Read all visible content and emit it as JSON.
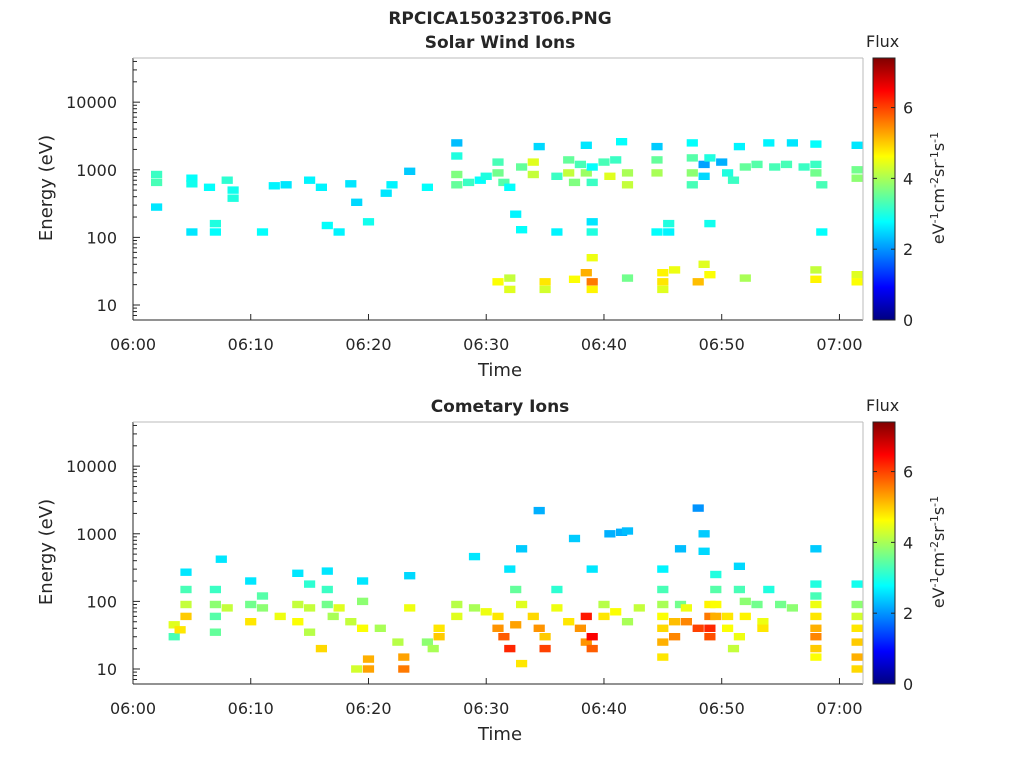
{
  "figure_title": "RPCICA150323T06.PNG",
  "chart_data": [
    {
      "type": "heatmap",
      "title": "Solar Wind Ions",
      "xlabel": "Time",
      "ylabel": "Energy (eV)",
      "x_ticks": [
        "06:00",
        "06:10",
        "06:20",
        "06:30",
        "06:40",
        "06:50",
        "07:00"
      ],
      "xlim": [
        "06:00",
        "07:02"
      ],
      "y_scale": "log",
      "y_ticks": [
        "10",
        "100",
        "1000",
        "10000"
      ],
      "ylim": [
        6,
        45000
      ],
      "colorbar": {
        "title": "Flux",
        "label": "eV-1cm-2sr-1s-1",
        "ticks": [
          "0",
          "2",
          "4",
          "6"
        ],
        "range": [
          0,
          7.4
        ],
        "colormap": "jet"
      },
      "points": [
        [
          "06:02",
          850,
          3.2
        ],
        [
          "06:02",
          650,
          3.3
        ],
        [
          "06:02",
          280,
          2.6
        ],
        [
          "06:05",
          750,
          2.8
        ],
        [
          "06:05",
          620,
          2.9
        ],
        [
          "06:05",
          120,
          2.6
        ],
        [
          "06:06.5",
          550,
          2.8
        ],
        [
          "06:07",
          160,
          3.0
        ],
        [
          "06:07",
          120,
          2.8
        ],
        [
          "06:08",
          700,
          3.1
        ],
        [
          "06:08.5",
          500,
          2.9
        ],
        [
          "06:08.5",
          380,
          3.0
        ],
        [
          "06:11",
          120,
          2.8
        ],
        [
          "06:12",
          580,
          2.7
        ],
        [
          "06:13",
          600,
          2.6
        ],
        [
          "06:15",
          700,
          2.7
        ],
        [
          "06:16",
          550,
          2.7
        ],
        [
          "06:16.5",
          150,
          2.8
        ],
        [
          "06:17.5",
          120,
          2.7
        ],
        [
          "06:18.5",
          620,
          2.6
        ],
        [
          "06:19",
          330,
          2.5
        ],
        [
          "06:20",
          170,
          2.9
        ],
        [
          "06:21.5",
          450,
          2.6
        ],
        [
          "06:22",
          600,
          2.7
        ],
        [
          "06:23.5",
          950,
          2.4
        ],
        [
          "06:25",
          550,
          2.8
        ],
        [
          "06:27.5",
          2500,
          2.3
        ],
        [
          "06:27.5",
          1600,
          3.0
        ],
        [
          "06:27.5",
          850,
          3.7
        ],
        [
          "06:27.5",
          600,
          3.5
        ],
        [
          "06:28.5",
          650,
          3.2
        ],
        [
          "06:29.5",
          700,
          2.8
        ],
        [
          "06:30",
          800,
          3.0
        ],
        [
          "06:31",
          1300,
          3.3
        ],
        [
          "06:31",
          900,
          3.6
        ],
        [
          "06:31.5",
          650,
          3.4
        ],
        [
          "06:32",
          550,
          2.8
        ],
        [
          "06:32.5",
          220,
          2.7
        ],
        [
          "06:33",
          130,
          2.8
        ],
        [
          "06:33",
          1100,
          3.5
        ],
        [
          "06:34",
          1300,
          4.4
        ],
        [
          "06:34",
          850,
          4.2
        ],
        [
          "06:34.5",
          2200,
          2.5
        ],
        [
          "06:36",
          800,
          3.2
        ],
        [
          "06:36",
          120,
          2.7
        ],
        [
          "06:37",
          1400,
          3.5
        ],
        [
          "06:37",
          900,
          4.2
        ],
        [
          "06:37.5",
          650,
          3.7
        ],
        [
          "06:38",
          1200,
          3.3
        ],
        [
          "06:38.5",
          2300,
          2.6
        ],
        [
          "06:38.5",
          900,
          3.9
        ],
        [
          "06:39",
          1100,
          2.8
        ],
        [
          "06:39",
          650,
          3.2
        ],
        [
          "06:39",
          170,
          2.6
        ],
        [
          "06:39",
          120,
          3.0
        ],
        [
          "06:40",
          1300,
          3.3
        ],
        [
          "06:40.5",
          800,
          4.4
        ],
        [
          "06:41",
          1400,
          3.2
        ],
        [
          "06:41.5",
          2600,
          2.8
        ],
        [
          "06:42",
          900,
          4.0
        ],
        [
          "06:42",
          600,
          4.2
        ],
        [
          "06:44.5",
          1400,
          3.5
        ],
        [
          "06:44.5",
          900,
          4.0
        ],
        [
          "06:44.5",
          2200,
          2.4
        ],
        [
          "06:44.5",
          120,
          2.8
        ],
        [
          "06:45.5",
          160,
          3.0
        ],
        [
          "06:45.5",
          120,
          2.7
        ],
        [
          "06:47.5",
          2500,
          2.8
        ],
        [
          "06:47.5",
          1500,
          3.4
        ],
        [
          "06:47.5",
          900,
          3.8
        ],
        [
          "06:47.5",
          600,
          3.3
        ],
        [
          "06:48.5",
          1200,
          2.1
        ],
        [
          "06:48.5",
          800,
          2.5
        ],
        [
          "06:49",
          1500,
          3.0
        ],
        [
          "06:49",
          160,
          2.9
        ],
        [
          "06:50",
          1300,
          2.2
        ],
        [
          "06:50.5",
          900,
          3.0
        ],
        [
          "06:51",
          700,
          3.2
        ],
        [
          "06:51.5",
          2200,
          2.7
        ],
        [
          "06:52",
          1100,
          3.5
        ],
        [
          "06:53",
          1200,
          3.4
        ],
        [
          "06:54",
          2500,
          2.7
        ],
        [
          "06:54.5",
          1100,
          3.3
        ],
        [
          "06:55.5",
          1200,
          3.3
        ],
        [
          "06:56",
          2500,
          2.6
        ],
        [
          "06:57",
          1100,
          3.2
        ],
        [
          "06:58",
          2400,
          2.8
        ],
        [
          "06:58",
          1200,
          3.2
        ],
        [
          "06:58",
          900,
          3.6
        ],
        [
          "06:58.5",
          600,
          3.3
        ],
        [
          "06:58.5",
          120,
          2.8
        ],
        [
          "07:01.5",
          2300,
          2.6
        ],
        [
          "07:01.5",
          1000,
          3.6
        ],
        [
          "07:01.5",
          750,
          3.8
        ],
        [
          "06:31",
          22,
          4.6
        ],
        [
          "06:32",
          25,
          4.2
        ],
        [
          "06:32",
          17,
          4.4
        ],
        [
          "06:35",
          22,
          4.8
        ],
        [
          "06:35",
          17,
          4.3
        ],
        [
          "06:37.5",
          24,
          4.6
        ],
        [
          "06:38.5",
          30,
          5.2
        ],
        [
          "06:39",
          22,
          5.6
        ],
        [
          "06:39",
          17,
          4.7
        ],
        [
          "06:39",
          50,
          4.5
        ],
        [
          "06:42",
          25,
          3.6
        ],
        [
          "06:45",
          30,
          4.7
        ],
        [
          "06:45",
          22,
          4.8
        ],
        [
          "06:45",
          17,
          4.4
        ],
        [
          "06:46",
          33,
          4.5
        ],
        [
          "06:48",
          22,
          5.1
        ],
        [
          "06:48.5",
          40,
          4.4
        ],
        [
          "06:49",
          28,
          4.6
        ],
        [
          "06:52",
          25,
          4.0
        ],
        [
          "06:58",
          33,
          4.2
        ],
        [
          "06:58",
          24,
          4.7
        ],
        [
          "07:01.5",
          28,
          4.4
        ],
        [
          "07:01.5",
          22,
          4.6
        ]
      ]
    },
    {
      "type": "heatmap",
      "title": "Cometary Ions",
      "xlabel": "Time",
      "ylabel": "Energy (eV)",
      "x_ticks": [
        "06:00",
        "06:10",
        "06:20",
        "06:30",
        "06:40",
        "06:50",
        "07:00"
      ],
      "xlim": [
        "06:00",
        "07:02"
      ],
      "y_scale": "log",
      "y_ticks": [
        "10",
        "100",
        "1000",
        "10000"
      ],
      "ylim": [
        6,
        45000
      ],
      "colorbar": {
        "title": "Flux",
        "label": "eV-1cm-2sr-1s-1",
        "ticks": [
          "0",
          "2",
          "4",
          "6"
        ],
        "range": [
          0,
          7.4
        ],
        "colormap": "jet"
      },
      "points": [
        [
          "06:03.5",
          45,
          4.4
        ],
        [
          "06:03.5",
          30,
          3.3
        ],
        [
          "06:04",
          38,
          4.8
        ],
        [
          "06:04.5",
          270,
          2.6
        ],
        [
          "06:04.5",
          150,
          3.3
        ],
        [
          "06:04.5",
          90,
          4.2
        ],
        [
          "06:04.5",
          60,
          5.0
        ],
        [
          "06:07",
          150,
          3.2
        ],
        [
          "06:07",
          90,
          3.8
        ],
        [
          "06:07",
          60,
          3.4
        ],
        [
          "06:07",
          35,
          3.5
        ],
        [
          "06:07.5",
          420,
          2.6
        ],
        [
          "06:08",
          80,
          4.2
        ],
        [
          "06:10",
          200,
          2.6
        ],
        [
          "06:10",
          90,
          3.6
        ],
        [
          "06:10",
          50,
          4.8
        ],
        [
          "06:11",
          120,
          3.4
        ],
        [
          "06:11",
          80,
          3.8
        ],
        [
          "06:12.5",
          60,
          4.5
        ],
        [
          "06:14",
          260,
          2.6
        ],
        [
          "06:14",
          90,
          4.2
        ],
        [
          "06:14",
          50,
          4.6
        ],
        [
          "06:15",
          180,
          3.1
        ],
        [
          "06:15",
          80,
          4.2
        ],
        [
          "06:15",
          35,
          4.1
        ],
        [
          "06:16",
          20,
          4.9
        ],
        [
          "06:16.5",
          280,
          2.6
        ],
        [
          "06:16.5",
          150,
          3.2
        ],
        [
          "06:16.5",
          90,
          3.6
        ],
        [
          "06:17",
          60,
          4.0
        ],
        [
          "06:17.5",
          80,
          4.4
        ],
        [
          "06:18.5",
          50,
          4.2
        ],
        [
          "06:19",
          10,
          4.3
        ],
        [
          "06:19.5",
          100,
          3.8
        ],
        [
          "06:19.5",
          200,
          2.6
        ],
        [
          "06:19.5",
          40,
          4.6
        ],
        [
          "06:20",
          14,
          5.2
        ],
        [
          "06:20",
          10,
          5.3
        ],
        [
          "06:21",
          40,
          4.0
        ],
        [
          "06:22.5",
          25,
          4.1
        ],
        [
          "06:23",
          15,
          5.3
        ],
        [
          "06:23",
          10,
          5.6
        ],
        [
          "06:23.5",
          240,
          2.5
        ],
        [
          "06:23.5",
          80,
          4.5
        ],
        [
          "06:25",
          25,
          3.8
        ],
        [
          "06:25.5",
          20,
          4.0
        ],
        [
          "06:26",
          40,
          4.8
        ],
        [
          "06:26",
          30,
          5.0
        ],
        [
          "06:27.5",
          90,
          4.1
        ],
        [
          "06:27.5",
          60,
          4.4
        ],
        [
          "06:29",
          460,
          2.6
        ],
        [
          "06:29",
          80,
          4.0
        ],
        [
          "06:30",
          70,
          4.5
        ],
        [
          "06:31",
          60,
          4.8
        ],
        [
          "06:31",
          40,
          5.4
        ],
        [
          "06:31.5",
          30,
          5.8
        ],
        [
          "06:32",
          20,
          6.2
        ],
        [
          "06:32",
          300,
          2.6
        ],
        [
          "06:32.5",
          150,
          3.5
        ],
        [
          "06:32.5",
          45,
          5.3
        ],
        [
          "06:33",
          12,
          4.8
        ],
        [
          "06:33",
          600,
          2.4
        ],
        [
          "06:33",
          90,
          4.4
        ],
        [
          "06:34",
          60,
          4.9
        ],
        [
          "06:34.5",
          40,
          5.4
        ],
        [
          "06:34.5",
          2200,
          2.2
        ],
        [
          "06:35",
          30,
          5.0
        ],
        [
          "06:35",
          20,
          6.0
        ],
        [
          "06:36",
          150,
          3.1
        ],
        [
          "06:36",
          80,
          4.5
        ],
        [
          "06:37",
          50,
          4.8
        ],
        [
          "06:37.5",
          850,
          2.4
        ],
        [
          "06:38",
          40,
          5.4
        ],
        [
          "06:38.5",
          25,
          5.4
        ],
        [
          "06:38.5",
          60,
          6.3
        ],
        [
          "06:39",
          30,
          6.5
        ],
        [
          "06:39",
          20,
          5.8
        ],
        [
          "06:39",
          300,
          2.6
        ],
        [
          "06:40",
          60,
          4.8
        ],
        [
          "06:40",
          90,
          4.1
        ],
        [
          "06:41",
          70,
          4.6
        ],
        [
          "06:40.5",
          1000,
          2.2
        ],
        [
          "06:41.5",
          1050,
          2.2
        ],
        [
          "06:42",
          1100,
          2.3
        ],
        [
          "06:42",
          50,
          4.0
        ],
        [
          "06:43",
          80,
          4.2
        ],
        [
          "06:45",
          300,
          2.7
        ],
        [
          "06:45",
          150,
          3.3
        ],
        [
          "06:45",
          90,
          4.0
        ],
        [
          "06:45",
          60,
          4.6
        ],
        [
          "06:45",
          40,
          4.9
        ],
        [
          "06:45",
          25,
          5.2
        ],
        [
          "06:45",
          15,
          4.8
        ],
        [
          "06:46",
          50,
          5.1
        ],
        [
          "06:46",
          30,
          5.5
        ],
        [
          "06:46.5",
          90,
          3.6
        ],
        [
          "06:46.5",
          600,
          2.3
        ],
        [
          "06:47",
          80,
          4.5
        ],
        [
          "06:47",
          50,
          5.5
        ],
        [
          "06:48",
          40,
          6.0
        ],
        [
          "06:48",
          2400,
          2.0
        ],
        [
          "06:48.5",
          1000,
          2.4
        ],
        [
          "06:48.5",
          550,
          2.5
        ],
        [
          "06:49",
          90,
          4.7
        ],
        [
          "06:49",
          60,
          5.6
        ],
        [
          "06:49",
          40,
          6.2
        ],
        [
          "06:49",
          30,
          5.9
        ],
        [
          "06:49.5",
          250,
          3.0
        ],
        [
          "06:49.5",
          150,
          3.4
        ],
        [
          "06:49.5",
          90,
          4.6
        ],
        [
          "06:49.5",
          60,
          5.2
        ],
        [
          "06:50.5",
          60,
          4.8
        ],
        [
          "06:50.5",
          40,
          4.6
        ],
        [
          "06:51",
          20,
          4.2
        ],
        [
          "06:51.5",
          30,
          4.5
        ],
        [
          "06:51.5",
          330,
          2.5
        ],
        [
          "06:51.5",
          150,
          3.3
        ],
        [
          "06:52",
          100,
          3.8
        ],
        [
          "06:52",
          60,
          4.7
        ],
        [
          "06:53",
          90,
          3.6
        ],
        [
          "06:53.5",
          50,
          4.5
        ],
        [
          "06:53.5",
          40,
          4.8
        ],
        [
          "06:54",
          150,
          3.0
        ],
        [
          "06:55",
          90,
          3.6
        ],
        [
          "06:56",
          80,
          3.8
        ],
        [
          "06:58",
          600,
          2.4
        ],
        [
          "06:58",
          180,
          3.0
        ],
        [
          "06:58",
          120,
          3.3
        ],
        [
          "06:58",
          90,
          4.5
        ],
        [
          "06:58",
          60,
          4.8
        ],
        [
          "06:58",
          40,
          5.2
        ],
        [
          "06:58",
          30,
          5.5
        ],
        [
          "06:58",
          20,
          5.0
        ],
        [
          "06:58",
          15,
          4.6
        ],
        [
          "07:01.5",
          180,
          2.9
        ],
        [
          "07:01.5",
          90,
          3.8
        ],
        [
          "07:01.5",
          60,
          4.3
        ],
        [
          "07:01.5",
          40,
          4.8
        ],
        [
          "07:01.5",
          25,
          5.0
        ],
        [
          "07:01.5",
          15,
          5.2
        ],
        [
          "07:01.5",
          10,
          4.9
        ]
      ]
    }
  ]
}
